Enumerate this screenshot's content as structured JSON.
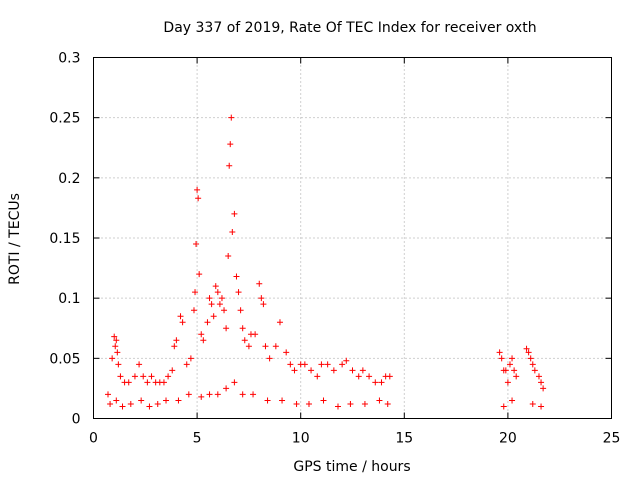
{
  "chart_data": {
    "type": "scatter",
    "title": "Day 337 of 2019, Rate Of TEC Index for receiver oxth",
    "xlabel": "GPS time / hours",
    "ylabel": "ROTI / TECUs",
    "xlim": [
      0,
      25
    ],
    "ylim": [
      0,
      0.3
    ],
    "x_ticks": [
      "0",
      "5",
      "10",
      "15",
      "20",
      "25"
    ],
    "y_ticks": [
      "0",
      "0.05",
      "0.1",
      "0.15",
      "0.2",
      "0.25",
      "0.3"
    ],
    "grid": true,
    "marker": "+",
    "color": "#ff0000",
    "series": [
      {
        "x": [
          0.7,
          0.9,
          1.0,
          1.05,
          1.1,
          1.15,
          1.2,
          1.3,
          1.5,
          1.7,
          2.0,
          2.2,
          2.4,
          2.6,
          2.8,
          3.0,
          3.2,
          3.4,
          3.6,
          3.8,
          3.9,
          4.0,
          4.2,
          4.3,
          4.5,
          4.7,
          4.85,
          4.9,
          4.95,
          5.0,
          5.05,
          5.1,
          5.2,
          5.3,
          5.5,
          5.6,
          5.7,
          5.8,
          5.9,
          6.0,
          6.1,
          6.2,
          6.3,
          6.4,
          6.5,
          6.55,
          6.6,
          6.65,
          6.7,
          6.8,
          6.9,
          7.0,
          7.1,
          7.2,
          7.3,
          7.5,
          7.6,
          7.8,
          8.0,
          8.1,
          8.2,
          8.3,
          8.5,
          8.8,
          9.0,
          9.3,
          9.5,
          9.7,
          10.0,
          10.2,
          10.5,
          10.8,
          11.0,
          11.3,
          11.6,
          12.0,
          12.2,
          12.5,
          12.8,
          13.0,
          13.3,
          13.6,
          13.9,
          14.1,
          14.3,
          19.6,
          19.7,
          19.8,
          19.9,
          20.0,
          20.1,
          20.2,
          20.3,
          20.4,
          20.9,
          21.0,
          21.1,
          21.2,
          21.3,
          21.5,
          21.6,
          21.7,
          0.8,
          1.1,
          1.4,
          1.8,
          2.3,
          2.7,
          3.1,
          3.5,
          4.1,
          4.6,
          5.2,
          5.6,
          6.0,
          6.4,
          6.8,
          7.2,
          7.7,
          8.4,
          9.1,
          9.8,
          10.4,
          11.1,
          11.8,
          12.4,
          13.1,
          13.8,
          14.2,
          19.8,
          20.2,
          21.2,
          21.6
        ],
        "y": [
          0.02,
          0.05,
          0.068,
          0.06,
          0.065,
          0.055,
          0.045,
          0.035,
          0.03,
          0.03,
          0.035,
          0.045,
          0.035,
          0.03,
          0.035,
          0.03,
          0.03,
          0.03,
          0.035,
          0.04,
          0.06,
          0.065,
          0.085,
          0.08,
          0.045,
          0.05,
          0.09,
          0.105,
          0.145,
          0.19,
          0.183,
          0.12,
          0.07,
          0.065,
          0.08,
          0.1,
          0.095,
          0.085,
          0.11,
          0.105,
          0.095,
          0.1,
          0.09,
          0.075,
          0.135,
          0.21,
          0.228,
          0.25,
          0.155,
          0.17,
          0.118,
          0.105,
          0.09,
          0.075,
          0.065,
          0.06,
          0.07,
          0.07,
          0.112,
          0.1,
          0.095,
          0.06,
          0.05,
          0.06,
          0.08,
          0.055,
          0.045,
          0.04,
          0.045,
          0.045,
          0.04,
          0.035,
          0.045,
          0.045,
          0.04,
          0.045,
          0.048,
          0.04,
          0.035,
          0.04,
          0.035,
          0.03,
          0.03,
          0.035,
          0.035,
          0.055,
          0.05,
          0.04,
          0.04,
          0.03,
          0.045,
          0.05,
          0.04,
          0.035,
          0.058,
          0.055,
          0.05,
          0.045,
          0.04,
          0.035,
          0.03,
          0.025,
          0.012,
          0.015,
          0.01,
          0.012,
          0.015,
          0.01,
          0.012,
          0.015,
          0.015,
          0.02,
          0.018,
          0.02,
          0.02,
          0.025,
          0.03,
          0.02,
          0.02,
          0.015,
          0.015,
          0.012,
          0.012,
          0.015,
          0.01,
          0.012,
          0.012,
          0.015,
          0.012,
          0.01,
          0.015,
          0.012,
          0.01
        ]
      }
    ]
  }
}
